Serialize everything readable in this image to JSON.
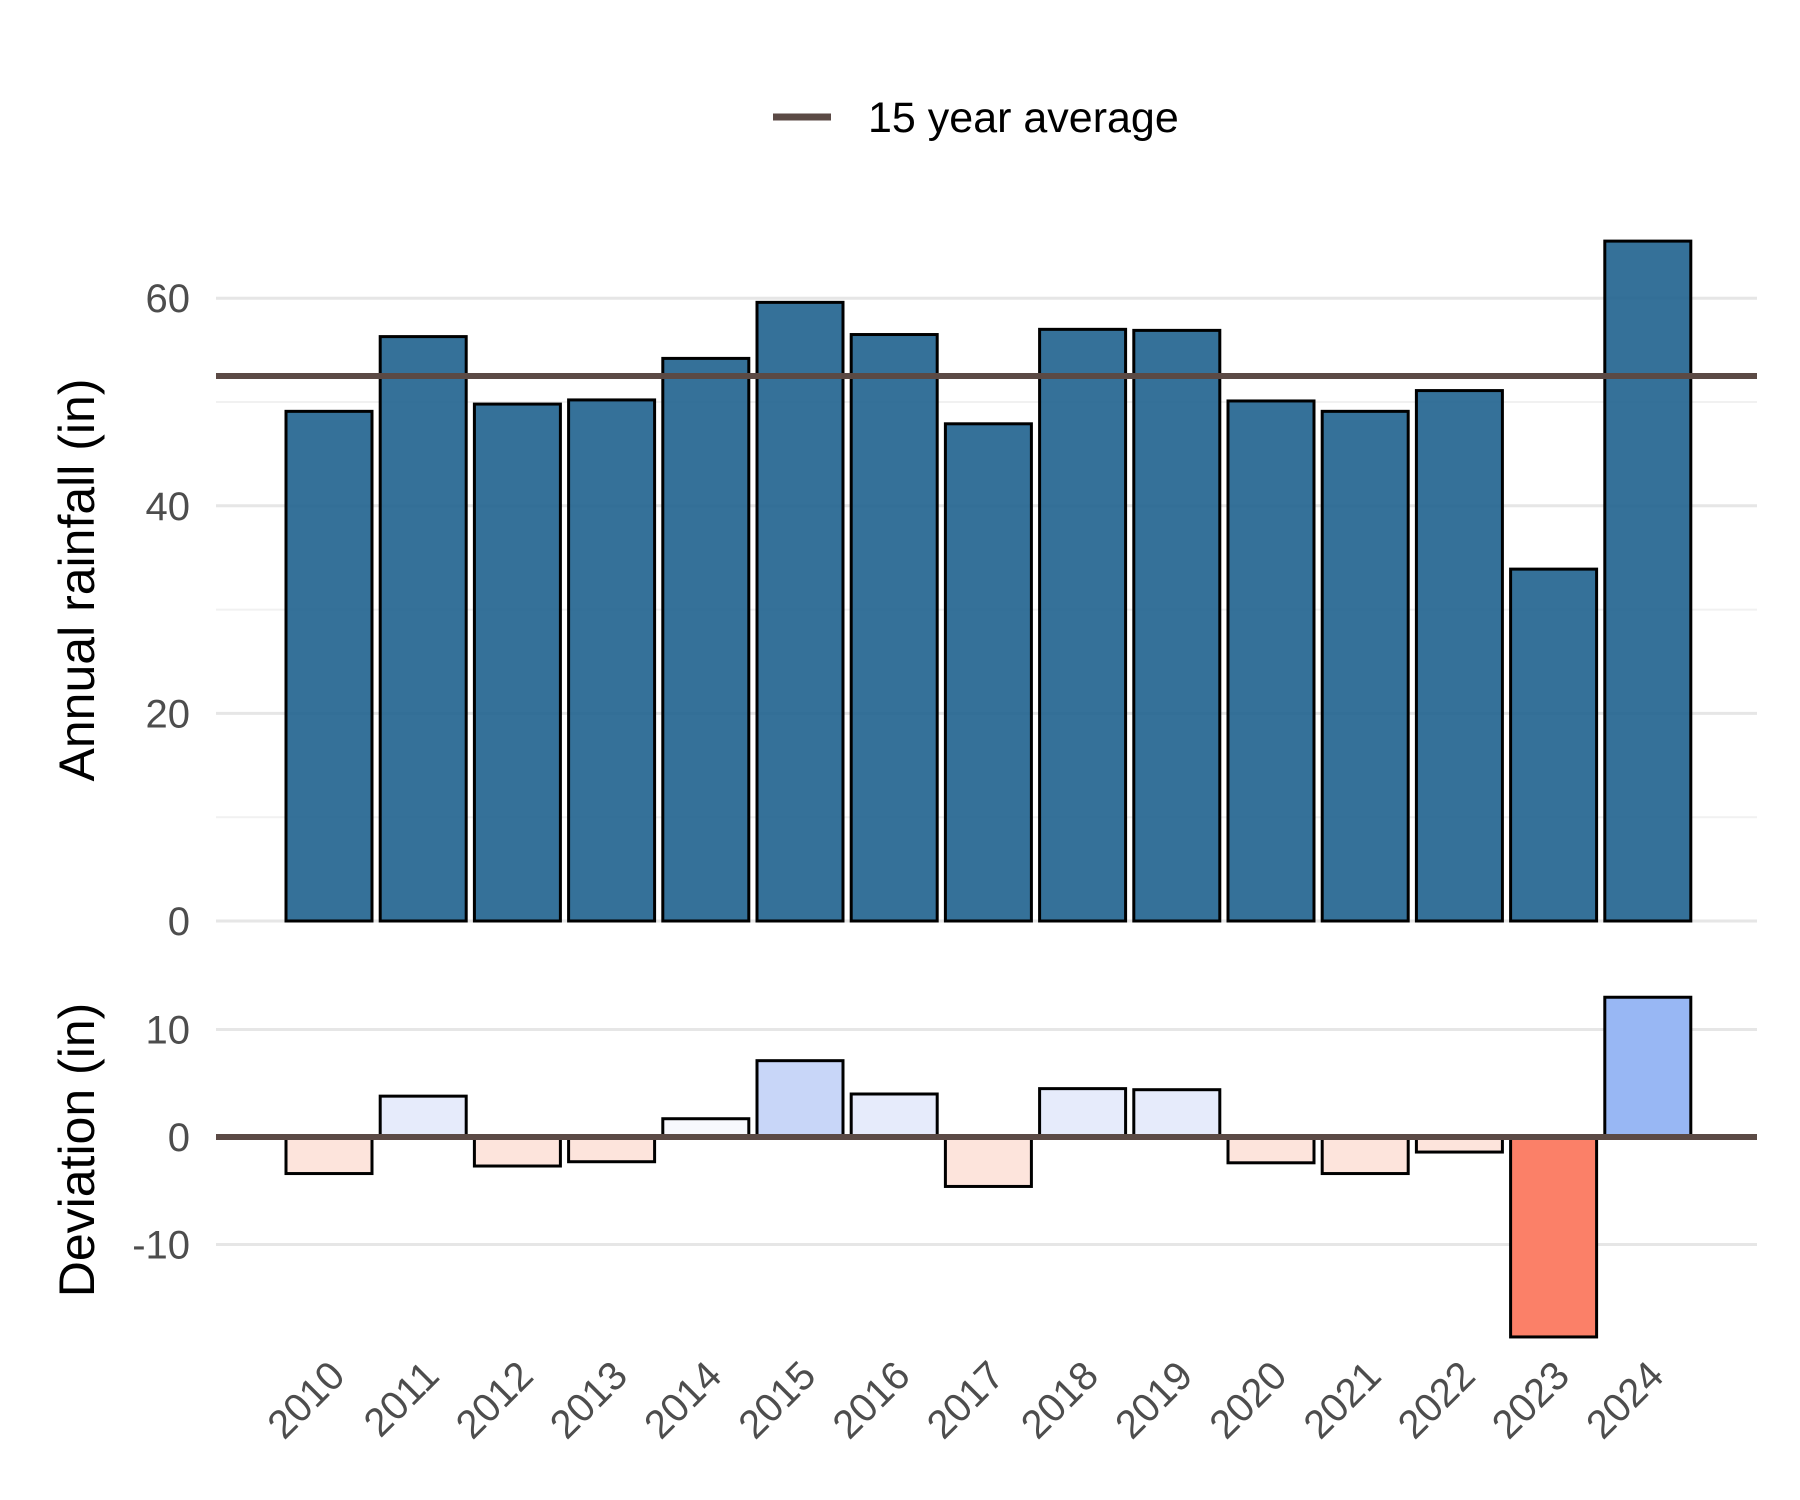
{
  "chart_data": [
    {
      "type": "bar",
      "panel": "rainfall",
      "ylabel": "Annual rainfall (in)",
      "xlabel": "",
      "categories": [
        "2010",
        "2011",
        "2012",
        "2013",
        "2014",
        "2015",
        "2016",
        "2017",
        "2018",
        "2019",
        "2020",
        "2021",
        "2022",
        "2023",
        "2024"
      ],
      "values": [
        49.1,
        56.3,
        49.8,
        50.2,
        54.2,
        59.6,
        56.5,
        47.9,
        57.0,
        56.9,
        50.1,
        49.1,
        51.1,
        33.9,
        65.5
      ],
      "ylim": [
        0,
        70
      ],
      "yticks": [
        "0",
        "20",
        "40",
        "60"
      ],
      "grid": true,
      "bar_color": "#1f628e",
      "reference_line": {
        "name": "15 year average",
        "value": 52.5,
        "color": "#5b4a45"
      },
      "legend": {
        "position": "top",
        "entries": [
          "15 year average"
        ]
      }
    },
    {
      "type": "bar",
      "panel": "deviation",
      "ylabel": "Deviation (in)",
      "xlabel": "",
      "categories": [
        "2010",
        "2011",
        "2012",
        "2013",
        "2014",
        "2015",
        "2016",
        "2017",
        "2018",
        "2019",
        "2020",
        "2021",
        "2022",
        "2023",
        "2024"
      ],
      "values": [
        -3.4,
        3.8,
        -2.7,
        -2.3,
        1.7,
        7.1,
        4.0,
        -4.6,
        4.5,
        4.4,
        -2.4,
        -3.4,
        -1.4,
        -18.6,
        13.0
      ],
      "ylim": [
        -19,
        15
      ],
      "yticks": [
        "-10",
        "0",
        "10"
      ],
      "grid": true,
      "colors": {
        "negative_strong": "#fb8068",
        "negative_light": "#fde4dc",
        "positive_light": "#e6ebfb",
        "positive_strong": "#98b7f4",
        "zero_line": "#5b4a45"
      }
    }
  ]
}
